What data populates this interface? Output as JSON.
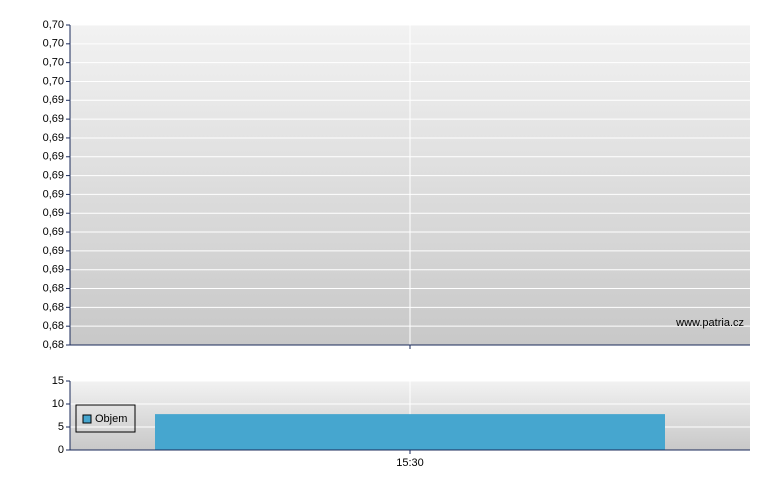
{
  "chart_data": [
    {
      "type": "line",
      "ylim": [
        0.6815,
        0.6985
      ],
      "yticks": [
        {
          "value": 0.6815,
          "label": "0,68"
        },
        {
          "value": 0.6825,
          "label": "0,68"
        },
        {
          "value": 0.6835,
          "label": "0,68"
        },
        {
          "value": 0.6845,
          "label": "0,68"
        },
        {
          "value": 0.6855,
          "label": "0,69"
        },
        {
          "value": 0.6865,
          "label": "0,69"
        },
        {
          "value": 0.6875,
          "label": "0,69"
        },
        {
          "value": 0.6885,
          "label": "0,69"
        },
        {
          "value": 0.6895,
          "label": "0,69"
        },
        {
          "value": 0.6905,
          "label": "0,69"
        },
        {
          "value": 0.6915,
          "label": "0,69"
        },
        {
          "value": 0.6925,
          "label": "0,69"
        },
        {
          "value": 0.6935,
          "label": "0,69"
        },
        {
          "value": 0.6945,
          "label": "0,69"
        },
        {
          "value": 0.6955,
          "label": "0,70"
        },
        {
          "value": 0.6965,
          "label": "0,70"
        },
        {
          "value": 0.6975,
          "label": "0,70"
        },
        {
          "value": 0.6985,
          "label": "0,70"
        }
      ],
      "grid": true,
      "annotation": "www.patria.cz"
    },
    {
      "type": "bar",
      "categories": [
        "15:30"
      ],
      "series": [
        {
          "name": "Objem",
          "color": "#46a6cf",
          "values": [
            7.8
          ]
        }
      ],
      "ylim": [
        0,
        15
      ],
      "yticks": [
        0,
        5,
        10,
        15
      ],
      "grid": true
    }
  ]
}
